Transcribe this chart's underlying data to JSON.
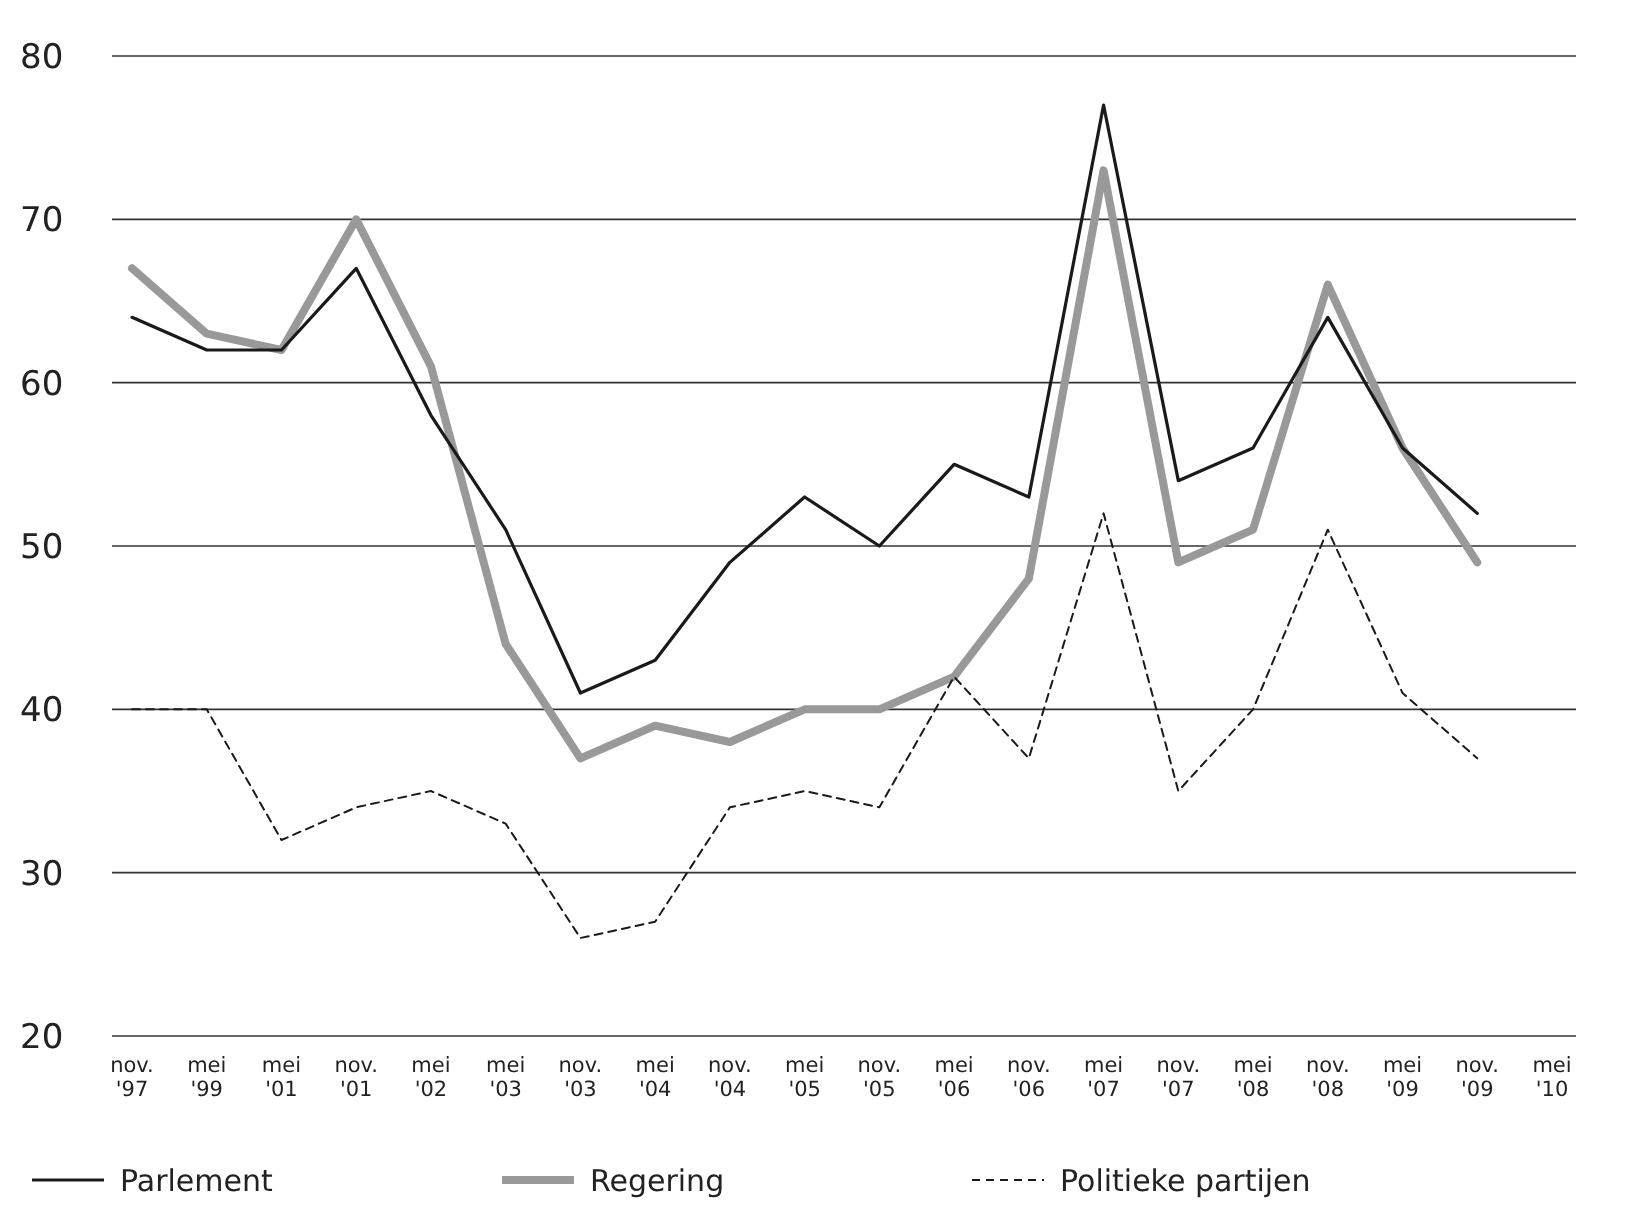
{
  "chart_data": {
    "type": "line",
    "categories": [
      "nov. '97",
      "mei '99",
      "mei '01",
      "nov. '01",
      "mei '02",
      "mei '03",
      "nov. '03",
      "mei '04",
      "nov. '04",
      "mei '05",
      "nov. '05",
      "mei '06",
      "nov. '06",
      "mei '07",
      "nov. '07",
      "mei '08",
      "nov. '08",
      "mei '09",
      "nov. '09",
      "mei '10"
    ],
    "series": [
      {
        "name": "Parlement",
        "color": "#1a1a1a",
        "line_style": "solid",
        "values": [
          64,
          62,
          62,
          67,
          58,
          51,
          41,
          43,
          49,
          53,
          50,
          55,
          53,
          77,
          54,
          56,
          64,
          56,
          52,
          null
        ]
      },
      {
        "name": "Regering",
        "color": "#999999",
        "line_style": "solid",
        "values": [
          67,
          63,
          62,
          70,
          61,
          44,
          37,
          39,
          38,
          40,
          40,
          42,
          48,
          73,
          49,
          51,
          66,
          56,
          49,
          null
        ]
      },
      {
        "name": "Politieke partijen",
        "color": "#1a1a1a",
        "line_style": "dashed",
        "values": [
          40,
          40,
          32,
          34,
          35,
          33,
          26,
          27,
          34,
          35,
          34,
          42,
          37,
          52,
          35,
          40,
          51,
          41,
          37,
          null
        ]
      }
    ],
    "ylim": [
      20,
      80
    ],
    "yticks": [
      20,
      30,
      40,
      50,
      60,
      70,
      80
    ],
    "grid": "y",
    "legend": "bottom",
    "marker": "none"
  }
}
